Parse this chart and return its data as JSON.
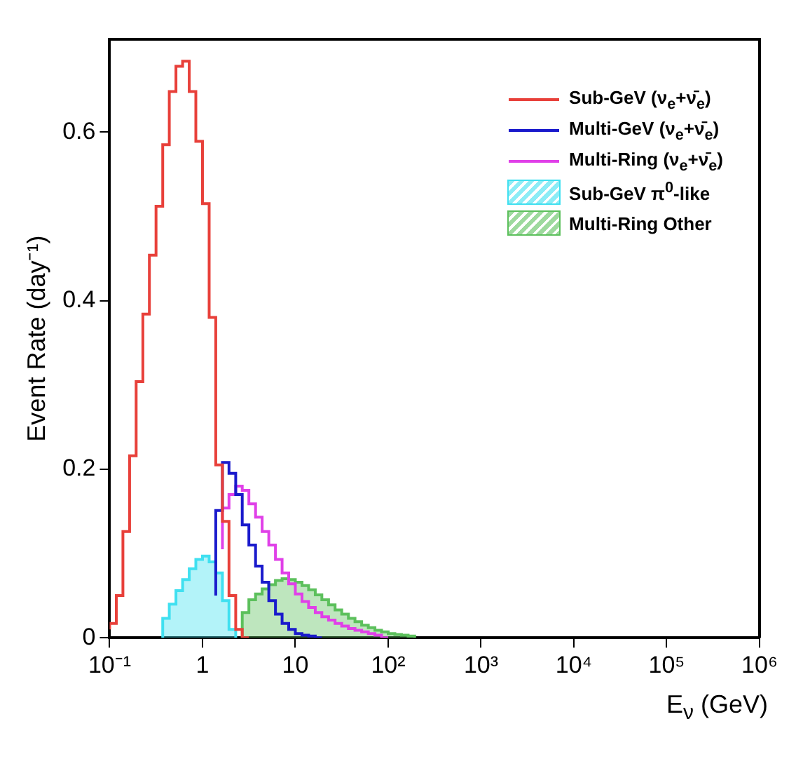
{
  "chart_data": {
    "type": "step",
    "xlabel": "E$_{ν}$ (GeV)",
    "ylabel": "Event Rate (day⁻¹)",
    "log": "x",
    "grid": false,
    "legend": "top right",
    "series": [
      {
        "name": "Sub-GeV (ν$_{e}$+ν̄$_{e}$)",
        "color": "#e8403a",
        "x": [
          0.1,
          0.118,
          0.139,
          0.164,
          0.193,
          0.228,
          0.268,
          0.316,
          0.373,
          0.439,
          0.518,
          0.611,
          0.72,
          0.848,
          1,
          1.18,
          1.39,
          1.64,
          1.93,
          2.28,
          2.68,
          3.16
        ],
        "values": [
          0.01,
          0.017,
          0.05,
          0.126,
          0.216,
          0.304,
          0.384,
          0.454,
          0.512,
          0.585,
          0.648,
          0.678,
          0.684,
          0.648,
          0.589,
          0.515,
          0.38,
          0.205,
          0.138,
          0.05,
          0.01,
          0
        ]
      },
      {
        "name": "Multi-GeV (ν$_{e}$+ν̄$_{e}$)",
        "color": "#1a1acc",
        "x": [
          1.39,
          1.64,
          1.93,
          2.28,
          2.68,
          3.16,
          3.73,
          4.39,
          5.18,
          6.11,
          7.2,
          8.48,
          10,
          11.8,
          13.9,
          16.4,
          19.3
        ],
        "values": [
          0.05,
          0.151,
          0.208,
          0.195,
          0.17,
          0.134,
          0.11,
          0.085,
          0.066,
          0.044,
          0.028,
          0.017,
          0.01,
          0.005,
          0.003,
          0.002,
          0
        ]
      },
      {
        "name": "Multi-Ring (ν$_{e}$+ν̄$_{e}$)",
        "color": "#e040e8",
        "x": [
          1.64,
          1.93,
          2.28,
          2.68,
          3.16,
          3.73,
          4.39,
          5.18,
          6.11,
          7.2,
          8.48,
          10,
          11.8,
          13.9,
          16.4,
          19.3,
          22.8,
          26.8,
          31.6,
          37.3,
          43.9,
          51.8,
          61.1,
          72,
          84.8,
          100
        ],
        "values": [
          0.105,
          0.154,
          0.17,
          0.18,
          0.175,
          0.159,
          0.143,
          0.126,
          0.11,
          0.093,
          0.077,
          0.064,
          0.052,
          0.043,
          0.036,
          0.03,
          0.025,
          0.021,
          0.017,
          0.014,
          0.011,
          0.009,
          0.007,
          0.005,
          0.003,
          0
        ]
      },
      {
        "name": "Sub-GeV  π$^{0}$-like",
        "color": "#40e0f0",
        "type": "area",
        "x": [
          0.373,
          0.373,
          0.439,
          0.439,
          0.518,
          0.518,
          0.611,
          0.611,
          0.72,
          0.72,
          0.848,
          0.848,
          1,
          1,
          1.18,
          1.18,
          1.39,
          1.39,
          1.64,
          1.64,
          1.93,
          1.93,
          2.28,
          2.28
        ],
        "values": [
          0,
          0.023,
          0.023,
          0.04,
          0.04,
          0.056,
          0.056,
          0.069,
          0.069,
          0.082,
          0.082,
          0.093,
          0.093,
          0.097,
          0.097,
          0.09,
          0.09,
          0.077,
          0.077,
          0.044,
          0.044,
          0.01,
          0.01,
          0
        ]
      },
      {
        "name": "Multi-Ring Other",
        "color": "#5cc05c",
        "type": "area",
        "x": [
          2.68,
          2.68,
          3.16,
          3.16,
          3.73,
          3.73,
          4.39,
          4.39,
          5.18,
          5.18,
          6.11,
          6.11,
          7.2,
          7.2,
          8.48,
          8.48,
          10,
          10,
          11.8,
          11.8,
          13.9,
          13.9,
          16.4,
          16.4,
          19.3,
          19.3,
          22.8,
          22.8,
          26.8,
          26.8,
          31.6,
          31.6,
          37.3,
          37.3,
          43.9,
          43.9,
          51.8,
          51.8,
          61.1,
          61.1,
          72,
          72,
          84.8,
          84.8,
          100,
          100,
          118,
          118,
          139,
          139,
          164,
          164,
          193,
          193
        ],
        "values": [
          0,
          0.03,
          0.03,
          0.045,
          0.045,
          0.052,
          0.052,
          0.058,
          0.058,
          0.063,
          0.063,
          0.068,
          0.068,
          0.07,
          0.07,
          0.069,
          0.069,
          0.066,
          0.066,
          0.062,
          0.062,
          0.057,
          0.057,
          0.051,
          0.051,
          0.045,
          0.045,
          0.039,
          0.039,
          0.033,
          0.033,
          0.028,
          0.028,
          0.023,
          0.023,
          0.019,
          0.019,
          0.015,
          0.015,
          0.012,
          0.012,
          0.009,
          0.009,
          0.007,
          0.007,
          0.005,
          0.005,
          0.004,
          0.004,
          0.003,
          0.003,
          0.002,
          0.002,
          0
        ]
      }
    ],
    "xlim": [
      0.1,
      1000000
    ],
    "xticks": [
      {
        "value": 0.1,
        "label": "10⁻¹"
      },
      1,
      10,
      {
        "value": 100,
        "label": "10²"
      },
      {
        "value": 1000,
        "label": "10³"
      },
      {
        "value": 10000,
        "label": "10⁴"
      },
      {
        "value": 100000,
        "label": "10⁵"
      },
      {
        "value": 1000000,
        "label": "10⁶"
      }
    ],
    "ylim": [
      0,
      0.71
    ],
    "yticks": [
      0,
      0.2,
      0.4,
      0.6
    ]
  }
}
